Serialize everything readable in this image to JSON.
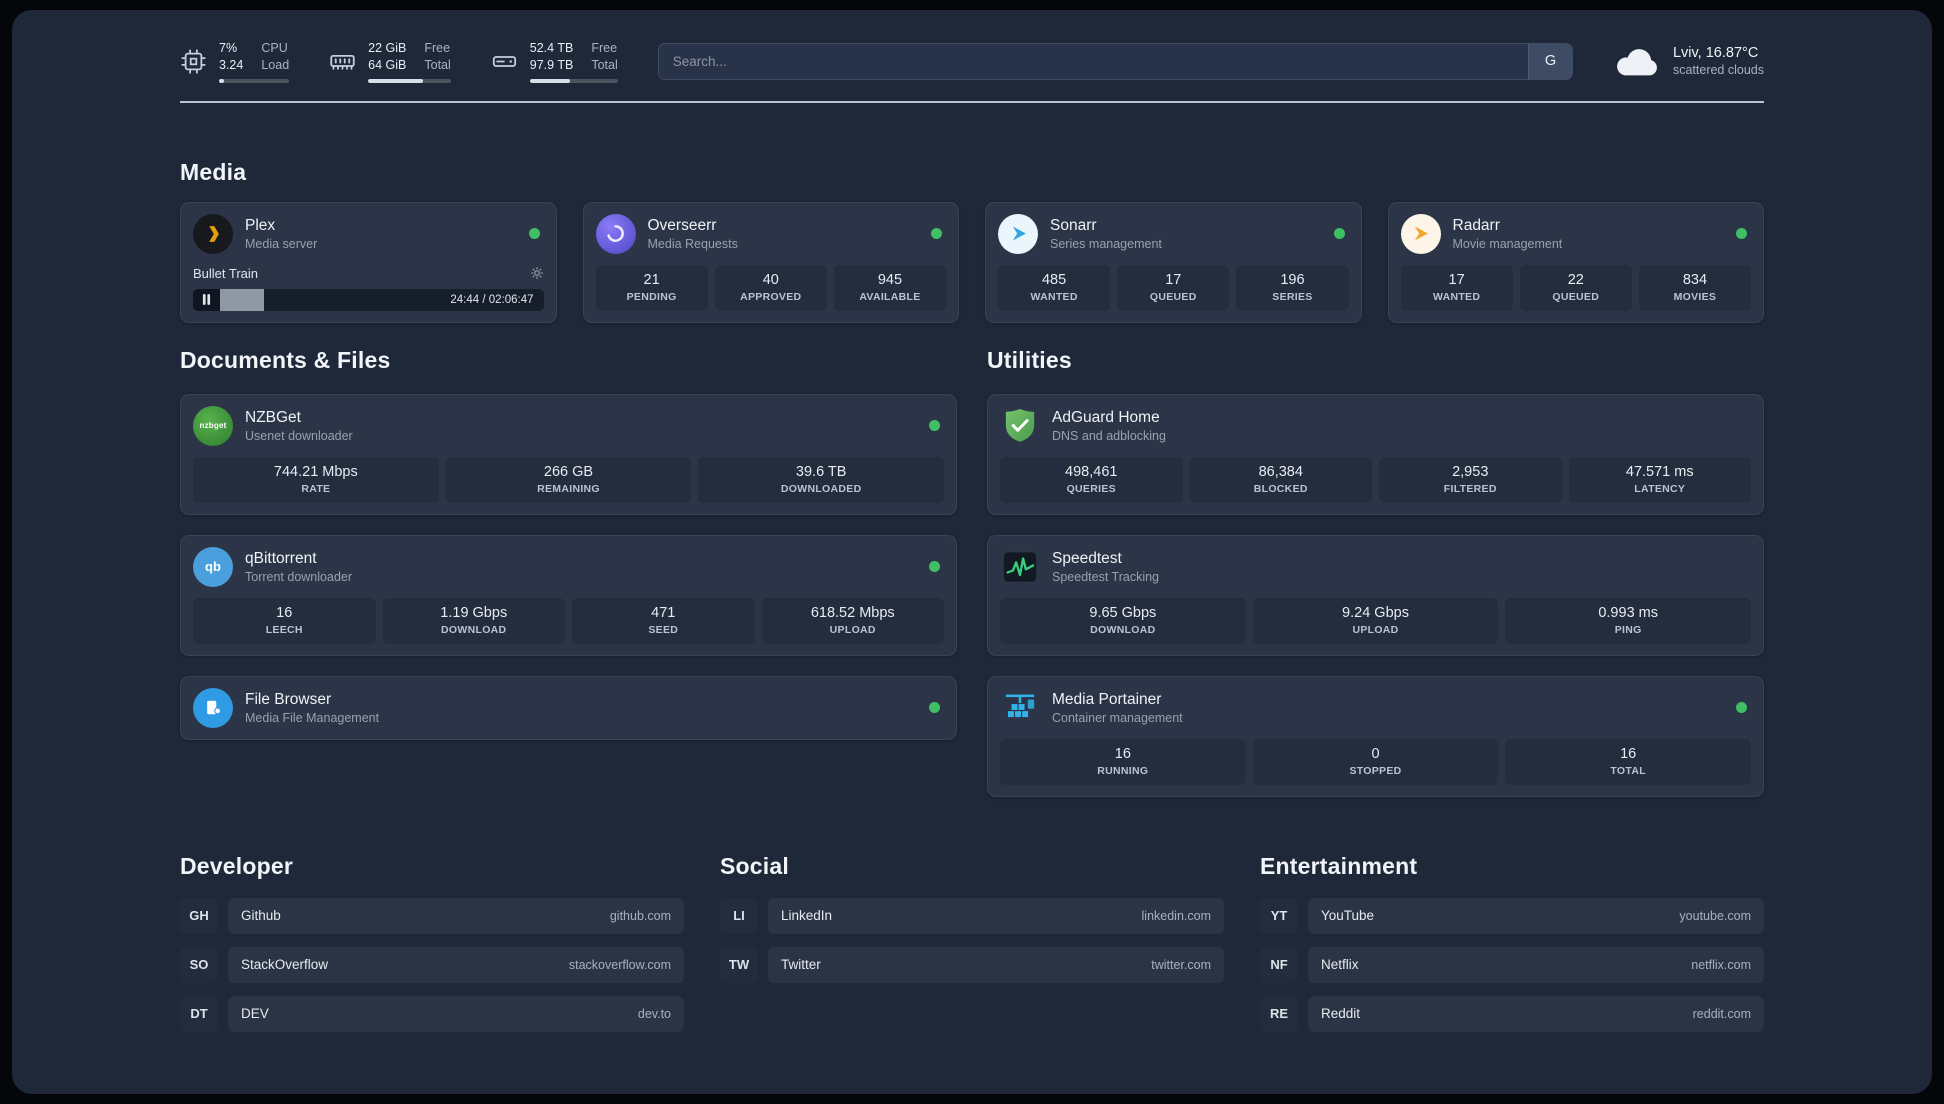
{
  "topbar": {
    "cpu": {
      "value1": "7%",
      "value2": "3.24",
      "label1": "CPU",
      "label2": "Load",
      "progress": 7
    },
    "memory": {
      "value1": "22 GiB",
      "value2": "64 GiB",
      "label1": "Free",
      "label2": "Total",
      "progress": 66
    },
    "disk": {
      "value1": "52.4 TB",
      "value2": "97.9 TB",
      "label1": "Free",
      "label2": "Total",
      "progress": 46
    },
    "search": {
      "placeholder": "Search...",
      "provider": "G"
    },
    "weather": {
      "location": "Lviv, 16.87°C",
      "condition": "scattered clouds"
    }
  },
  "media": {
    "title": "Media",
    "plex": {
      "name": "Plex",
      "desc": "Media server",
      "player": {
        "track": "Bullet Train",
        "time": "24:44 / 02:06:47",
        "progress": 20
      }
    },
    "overseerr": {
      "name": "Overseerr",
      "desc": "Media Requests",
      "stats": [
        {
          "value": "21",
          "label": "PENDING"
        },
        {
          "value": "40",
          "label": "APPROVED"
        },
        {
          "value": "945",
          "label": "AVAILABLE"
        }
      ]
    },
    "sonarr": {
      "name": "Sonarr",
      "desc": "Series management",
      "stats": [
        {
          "value": "485",
          "label": "WANTED"
        },
        {
          "value": "17",
          "label": "QUEUED"
        },
        {
          "value": "196",
          "label": "SERIES"
        }
      ]
    },
    "radarr": {
      "name": "Radarr",
      "desc": "Movie management",
      "stats": [
        {
          "value": "17",
          "label": "WANTED"
        },
        {
          "value": "22",
          "label": "QUEUED"
        },
        {
          "value": "834",
          "label": "MOVIES"
        }
      ]
    }
  },
  "documents": {
    "title": "Documents & Files",
    "nzbget": {
      "name": "NZBGet",
      "desc": "Usenet downloader",
      "icon_text": "nzbget",
      "stats": [
        {
          "value": "744.21 Mbps",
          "label": "RATE"
        },
        {
          "value": "266 GB",
          "label": "REMAINING"
        },
        {
          "value": "39.6 TB",
          "label": "DOWNLOADED"
        }
      ]
    },
    "qbittorrent": {
      "name": "qBittorrent",
      "desc": "Torrent downloader",
      "icon_text": "qb",
      "stats": [
        {
          "value": "16",
          "label": "LEECH"
        },
        {
          "value": "1.19 Gbps",
          "label": "DOWNLOAD"
        },
        {
          "value": "471",
          "label": "SEED"
        },
        {
          "value": "618.52 Mbps",
          "label": "UPLOAD"
        }
      ]
    },
    "filebrowser": {
      "name": "File Browser",
      "desc": "Media File Management"
    }
  },
  "utilities": {
    "title": "Utilities",
    "adguard": {
      "name": "AdGuard Home",
      "desc": "DNS and adblocking",
      "stats": [
        {
          "value": "498,461",
          "label": "QUERIES"
        },
        {
          "value": "86,384",
          "label": "BLOCKED"
        },
        {
          "value": "2,953",
          "label": "FILTERED"
        },
        {
          "value": "47.571 ms",
          "label": "LATENCY"
        }
      ]
    },
    "speedtest": {
      "name": "Speedtest",
      "desc": "Speedtest Tracking",
      "stats": [
        {
          "value": "9.65 Gbps",
          "label": "DOWNLOAD"
        },
        {
          "value": "9.24 Gbps",
          "label": "UPLOAD"
        },
        {
          "value": "0.993 ms",
          "label": "PING"
        }
      ]
    },
    "portainer": {
      "name": "Media Portainer",
      "desc": "Container management",
      "stats": [
        {
          "value": "16",
          "label": "RUNNING"
        },
        {
          "value": "0",
          "label": "STOPPED"
        },
        {
          "value": "16",
          "label": "TOTAL"
        }
      ]
    }
  },
  "bookmarks": {
    "developer": {
      "title": "Developer",
      "items": [
        {
          "abbr": "GH",
          "name": "Github",
          "domain": "github.com"
        },
        {
          "abbr": "SO",
          "name": "StackOverflow",
          "domain": "stackoverflow.com"
        },
        {
          "abbr": "DT",
          "name": "DEV",
          "domain": "dev.to"
        }
      ]
    },
    "social": {
      "title": "Social",
      "items": [
        {
          "abbr": "LI",
          "name": "LinkedIn",
          "domain": "linkedin.com"
        },
        {
          "abbr": "TW",
          "name": "Twitter",
          "domain": "twitter.com"
        }
      ]
    },
    "entertainment": {
      "title": "Entertainment",
      "items": [
        {
          "abbr": "YT",
          "name": "YouTube",
          "domain": "youtube.com"
        },
        {
          "abbr": "NF",
          "name": "Netflix",
          "domain": "netflix.com"
        },
        {
          "abbr": "RE",
          "name": "Reddit",
          "domain": "reddit.com"
        }
      ]
    }
  }
}
